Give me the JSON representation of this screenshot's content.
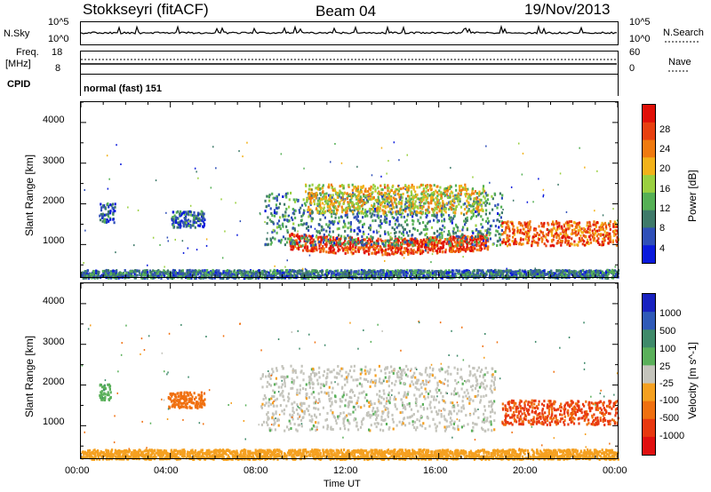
{
  "header": {
    "station": "Stokkseyri (fitACF)",
    "beam": "Beam 04",
    "date": "19/Nov/2013"
  },
  "top_panels": {
    "nsky_label": "N.Sky",
    "nsky_ticks": [
      "10^5",
      "10^0"
    ],
    "nsearch_label": "N.Search",
    "nsearch_ticks": [
      "10^5",
      "10^0"
    ],
    "freq_label": "Freq.",
    "freq_unit": "[MHz]",
    "freq_ticks": [
      "18",
      "8"
    ],
    "nave_label": "Nave",
    "nave_ticks": [
      "60",
      "0"
    ],
    "cpid_label": "CPID",
    "cpid_value": "normal (fast) 151"
  },
  "colors": {
    "power": [
      "#0a1adc",
      "#2f4fb8",
      "#3f7a6a",
      "#55b055",
      "#9ad040",
      "#f2b21a",
      "#f07a10",
      "#e84010",
      "#e01008"
    ],
    "velocity": [
      "#1822c0",
      "#2f5ab8",
      "#3f8a6a",
      "#5ab05a",
      "#c4c4bc",
      "#f5a020",
      "#f07010",
      "#e83810",
      "#e01010"
    ]
  },
  "chart_data": [
    {
      "type": "heatmap",
      "name": "power",
      "xlabel": "",
      "ylabel": "Slant Range [km]",
      "x_range_hours": [
        0,
        24
      ],
      "ylim": [
        200,
        4500
      ],
      "yticks": [
        "1000",
        "2000",
        "3000",
        "4000"
      ],
      "colorbar": {
        "label": "Power [dB]",
        "ticks": [
          "28",
          "24",
          "20",
          "16",
          "12",
          "8",
          "4"
        ],
        "range": [
          0,
          32
        ]
      },
      "regions": [
        {
          "t0": 9.3,
          "t1": 18.2,
          "r_center": 1100,
          "r_half": 200,
          "value": 27
        },
        {
          "t0": 8.2,
          "t1": 18.8,
          "r_center": 1650,
          "r_half": 650,
          "value": 9
        },
        {
          "t0": 10.0,
          "t1": 18.0,
          "r_center": 2150,
          "r_half": 350,
          "value": 19
        },
        {
          "t0": 18.8,
          "t1": 24.0,
          "r_center": 1300,
          "r_half": 300,
          "value": 25
        },
        {
          "t0": 0.8,
          "t1": 1.5,
          "r_center": 1800,
          "r_half": 250,
          "value": 6
        },
        {
          "t0": 4.0,
          "t1": 5.5,
          "r_center": 1650,
          "r_half": 200,
          "value": 6
        },
        {
          "t0": 0.0,
          "t1": 24.0,
          "r_center": 300,
          "r_half": 100,
          "value": 8
        }
      ]
    },
    {
      "type": "heatmap",
      "name": "velocity",
      "xlabel": "Time UT",
      "ylabel": "Slant Range [km]",
      "xticks": [
        "00:00",
        "04:00",
        "08:00",
        "12:00",
        "16:00",
        "20:00",
        "00:00"
      ],
      "ylim": [
        200,
        4500
      ],
      "yticks": [
        "1000",
        "2000",
        "3000",
        "4000"
      ],
      "colorbar": {
        "label": "Velocity [m s^-1]",
        "ticks": [
          "1000",
          "500",
          "100",
          "25",
          "-25",
          "-100",
          "-500",
          "-1000"
        ]
      },
      "regions": [
        {
          "t0": 8.0,
          "t1": 18.5,
          "r_center": 1700,
          "r_half": 800,
          "value": 0
        },
        {
          "t0": 18.8,
          "t1": 24.0,
          "r_center": 1350,
          "r_half": 300,
          "value": -600
        },
        {
          "t0": 0.8,
          "t1": 1.3,
          "r_center": 1850,
          "r_half": 200,
          "value": 80
        },
        {
          "t0": 3.8,
          "t1": 5.5,
          "r_center": 1650,
          "r_half": 200,
          "value": -150
        },
        {
          "t0": 0.0,
          "t1": 24.0,
          "r_center": 320,
          "r_half": 120,
          "value": -60
        }
      ]
    }
  ]
}
